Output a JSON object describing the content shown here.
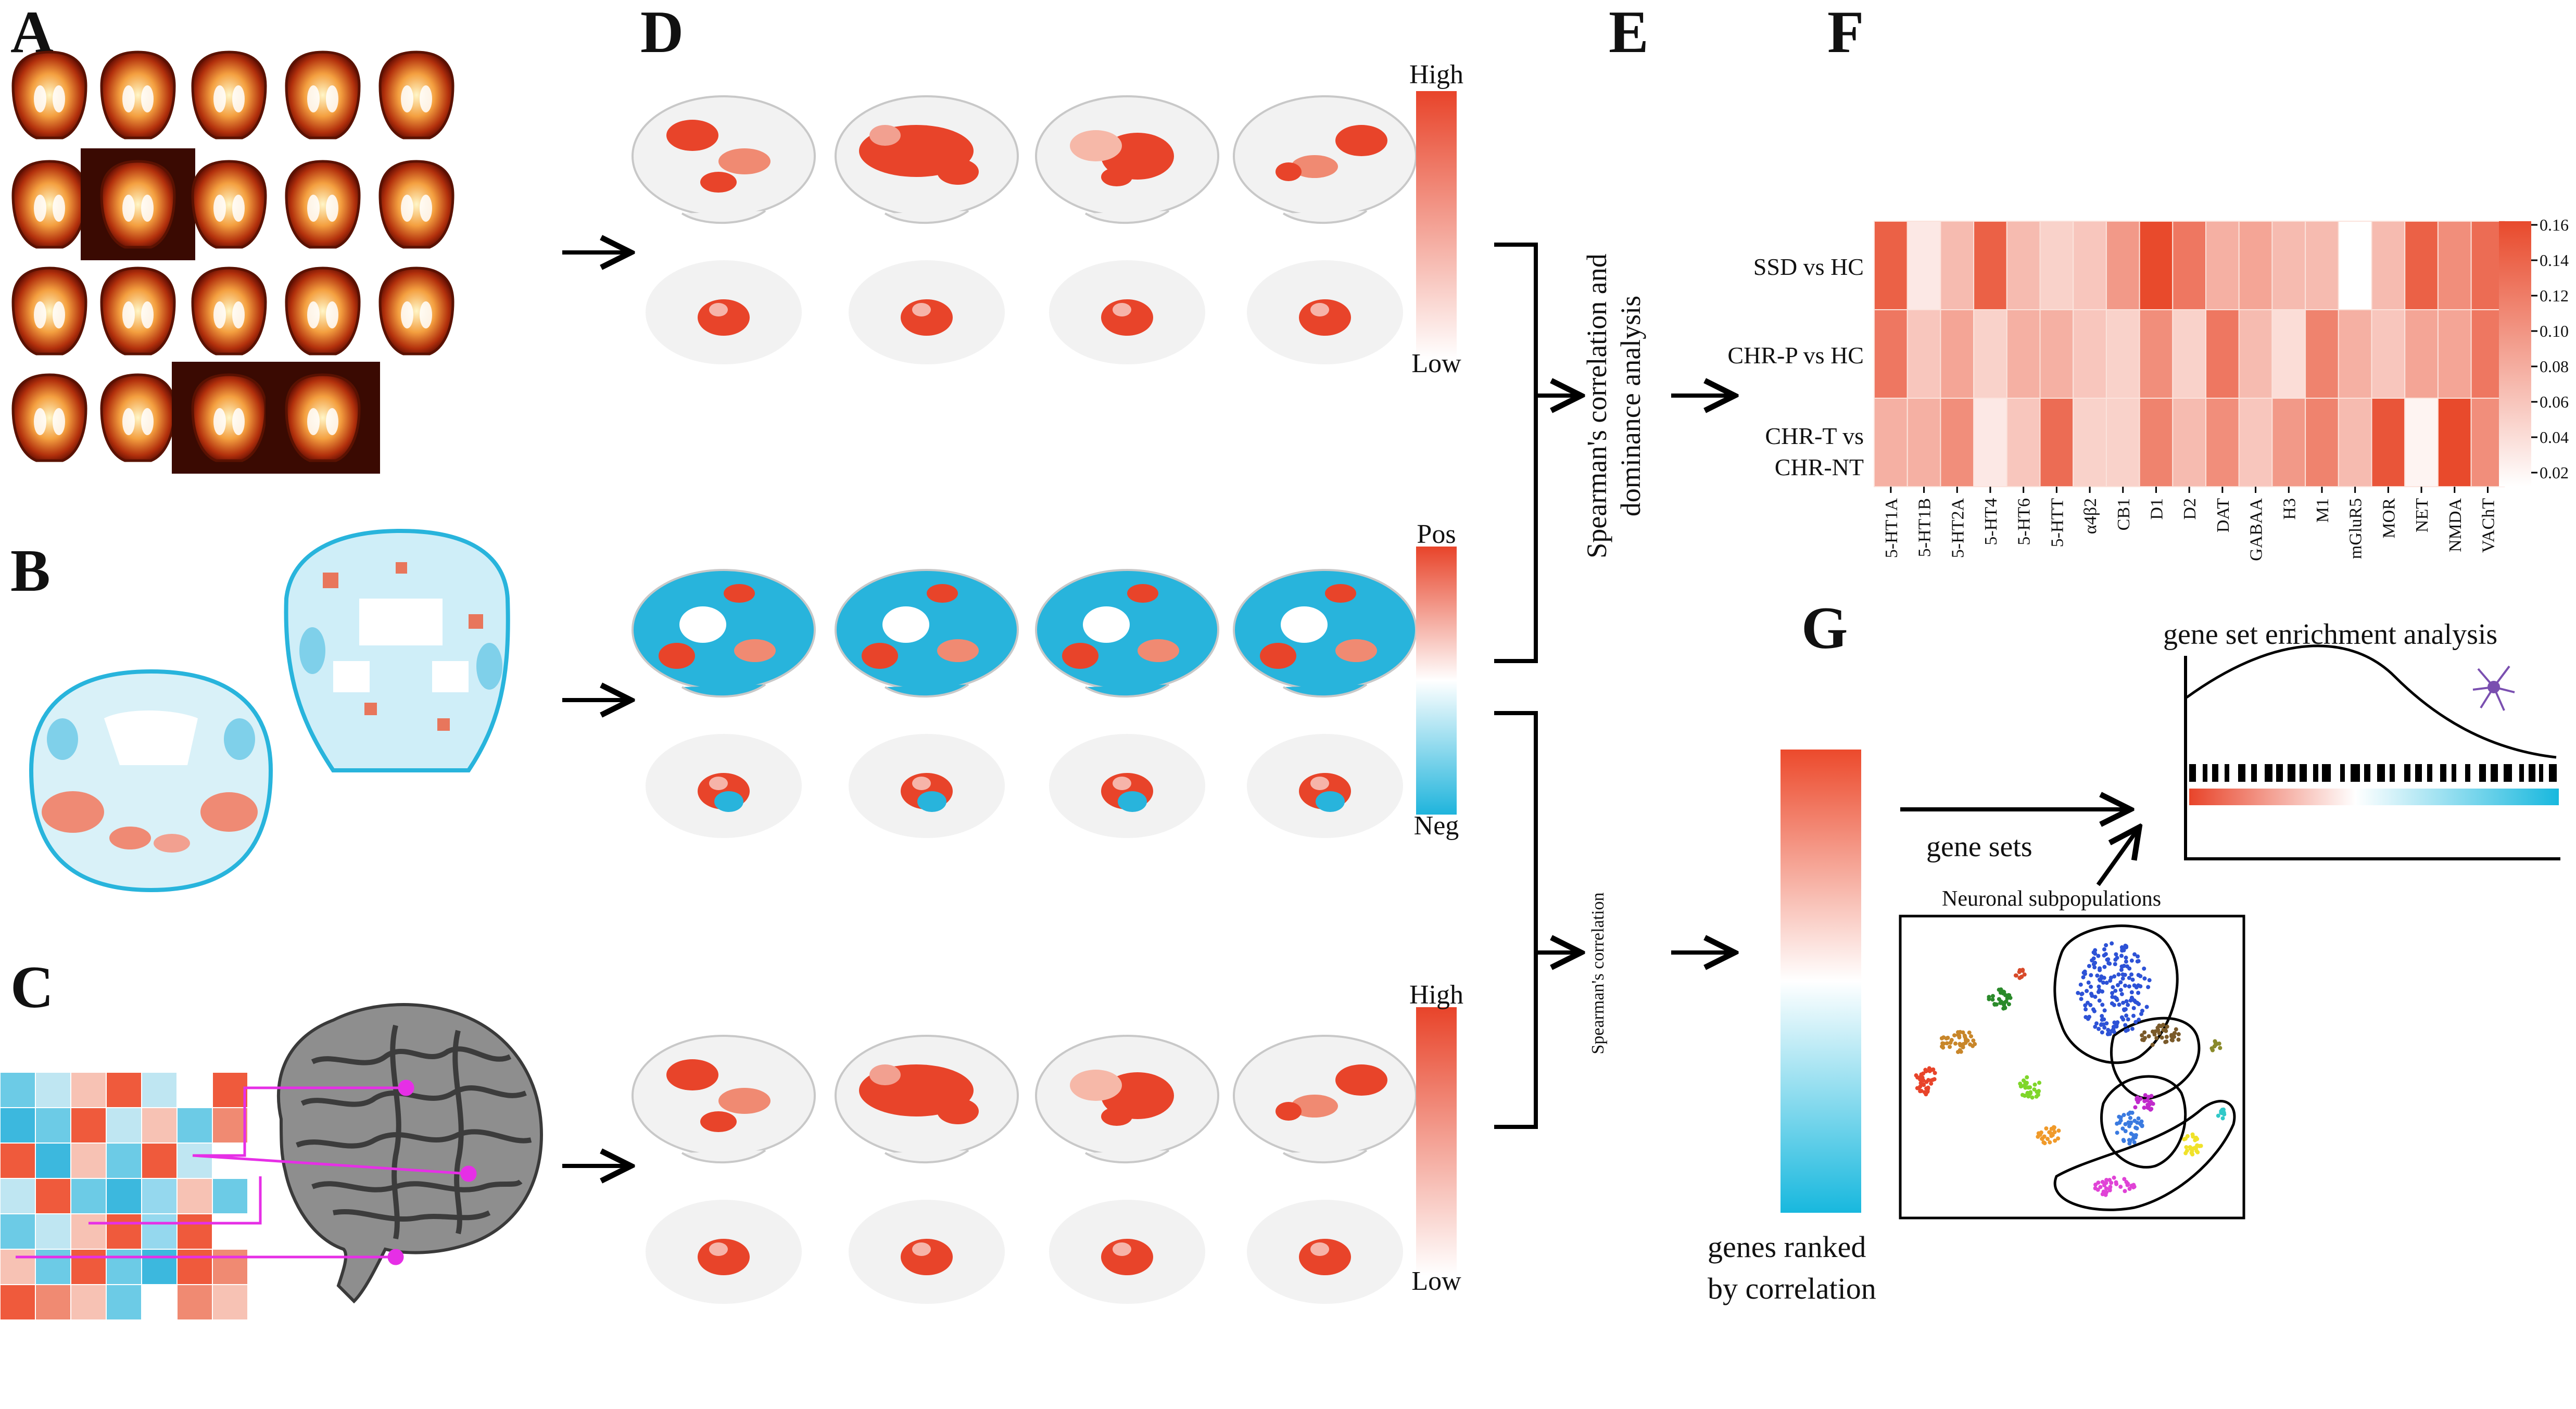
{
  "panels": {
    "a": "A",
    "b": "B",
    "c": "C",
    "d": "D",
    "e": "E",
    "f": "F",
    "g": "G"
  },
  "colorbars": {
    "d1_top": "High",
    "d1_bottom": "Low",
    "d2_top": "Pos",
    "d2_bottom": "Neg",
    "d3_top": "High",
    "d3_bottom": "Low"
  },
  "analysis": {
    "dominance_line1": "Spearman's correlation and",
    "dominance_line2": "dominance analysis",
    "spearman": "Spearman's correlation"
  },
  "heatmap": {
    "rows": [
      "SSD vs HC",
      "CHR-P vs HC",
      "CHR-T vs",
      "CHR-NT"
    ],
    "columns": [
      "5-HT1A",
      "5-HT1B",
      "5-HT2A",
      "5-HT4",
      "5-HT6",
      "5-HTT",
      "α4β2",
      "CB1",
      "D1",
      "D2",
      "DAT",
      "GABAA",
      "H3",
      "M1",
      "mGluR5",
      "MOR",
      "NET",
      "NMDA",
      "VAChT"
    ],
    "scale_ticks": [
      "0.16",
      "0.14",
      "0.12",
      "0.10",
      "0.08",
      "0.06",
      "0.04",
      "0.02"
    ],
    "values": [
      [
        0.14,
        0.02,
        0.06,
        0.14,
        0.06,
        0.04,
        0.05,
        0.09,
        0.16,
        0.12,
        0.07,
        0.08,
        0.06,
        0.06,
        0.0,
        0.06,
        0.14,
        0.1,
        0.13
      ],
      [
        0.12,
        0.05,
        0.08,
        0.04,
        0.07,
        0.07,
        0.05,
        0.04,
        0.1,
        0.04,
        0.12,
        0.06,
        0.03,
        0.11,
        0.07,
        0.05,
        0.08,
        0.08,
        0.12
      ],
      [
        0.07,
        0.07,
        0.1,
        0.02,
        0.05,
        0.13,
        0.04,
        0.04,
        0.11,
        0.06,
        0.1,
        0.05,
        0.09,
        0.11,
        0.06,
        0.15,
        0.01,
        0.16,
        0.1
      ]
    ],
    "colors": {
      "high": "#e84a2c",
      "low": "#ffffff"
    }
  },
  "gene_panel": {
    "ranked_line1": "genes ranked",
    "ranked_line2": "by correlation",
    "gene_sets": "gene sets",
    "gsea": "gene set enrichment analysis",
    "neuronal": "Neuronal subpopulations"
  },
  "colors": {
    "red": "#e8442a",
    "blue": "#28b4dc",
    "magenta": "#e62fe6"
  }
}
